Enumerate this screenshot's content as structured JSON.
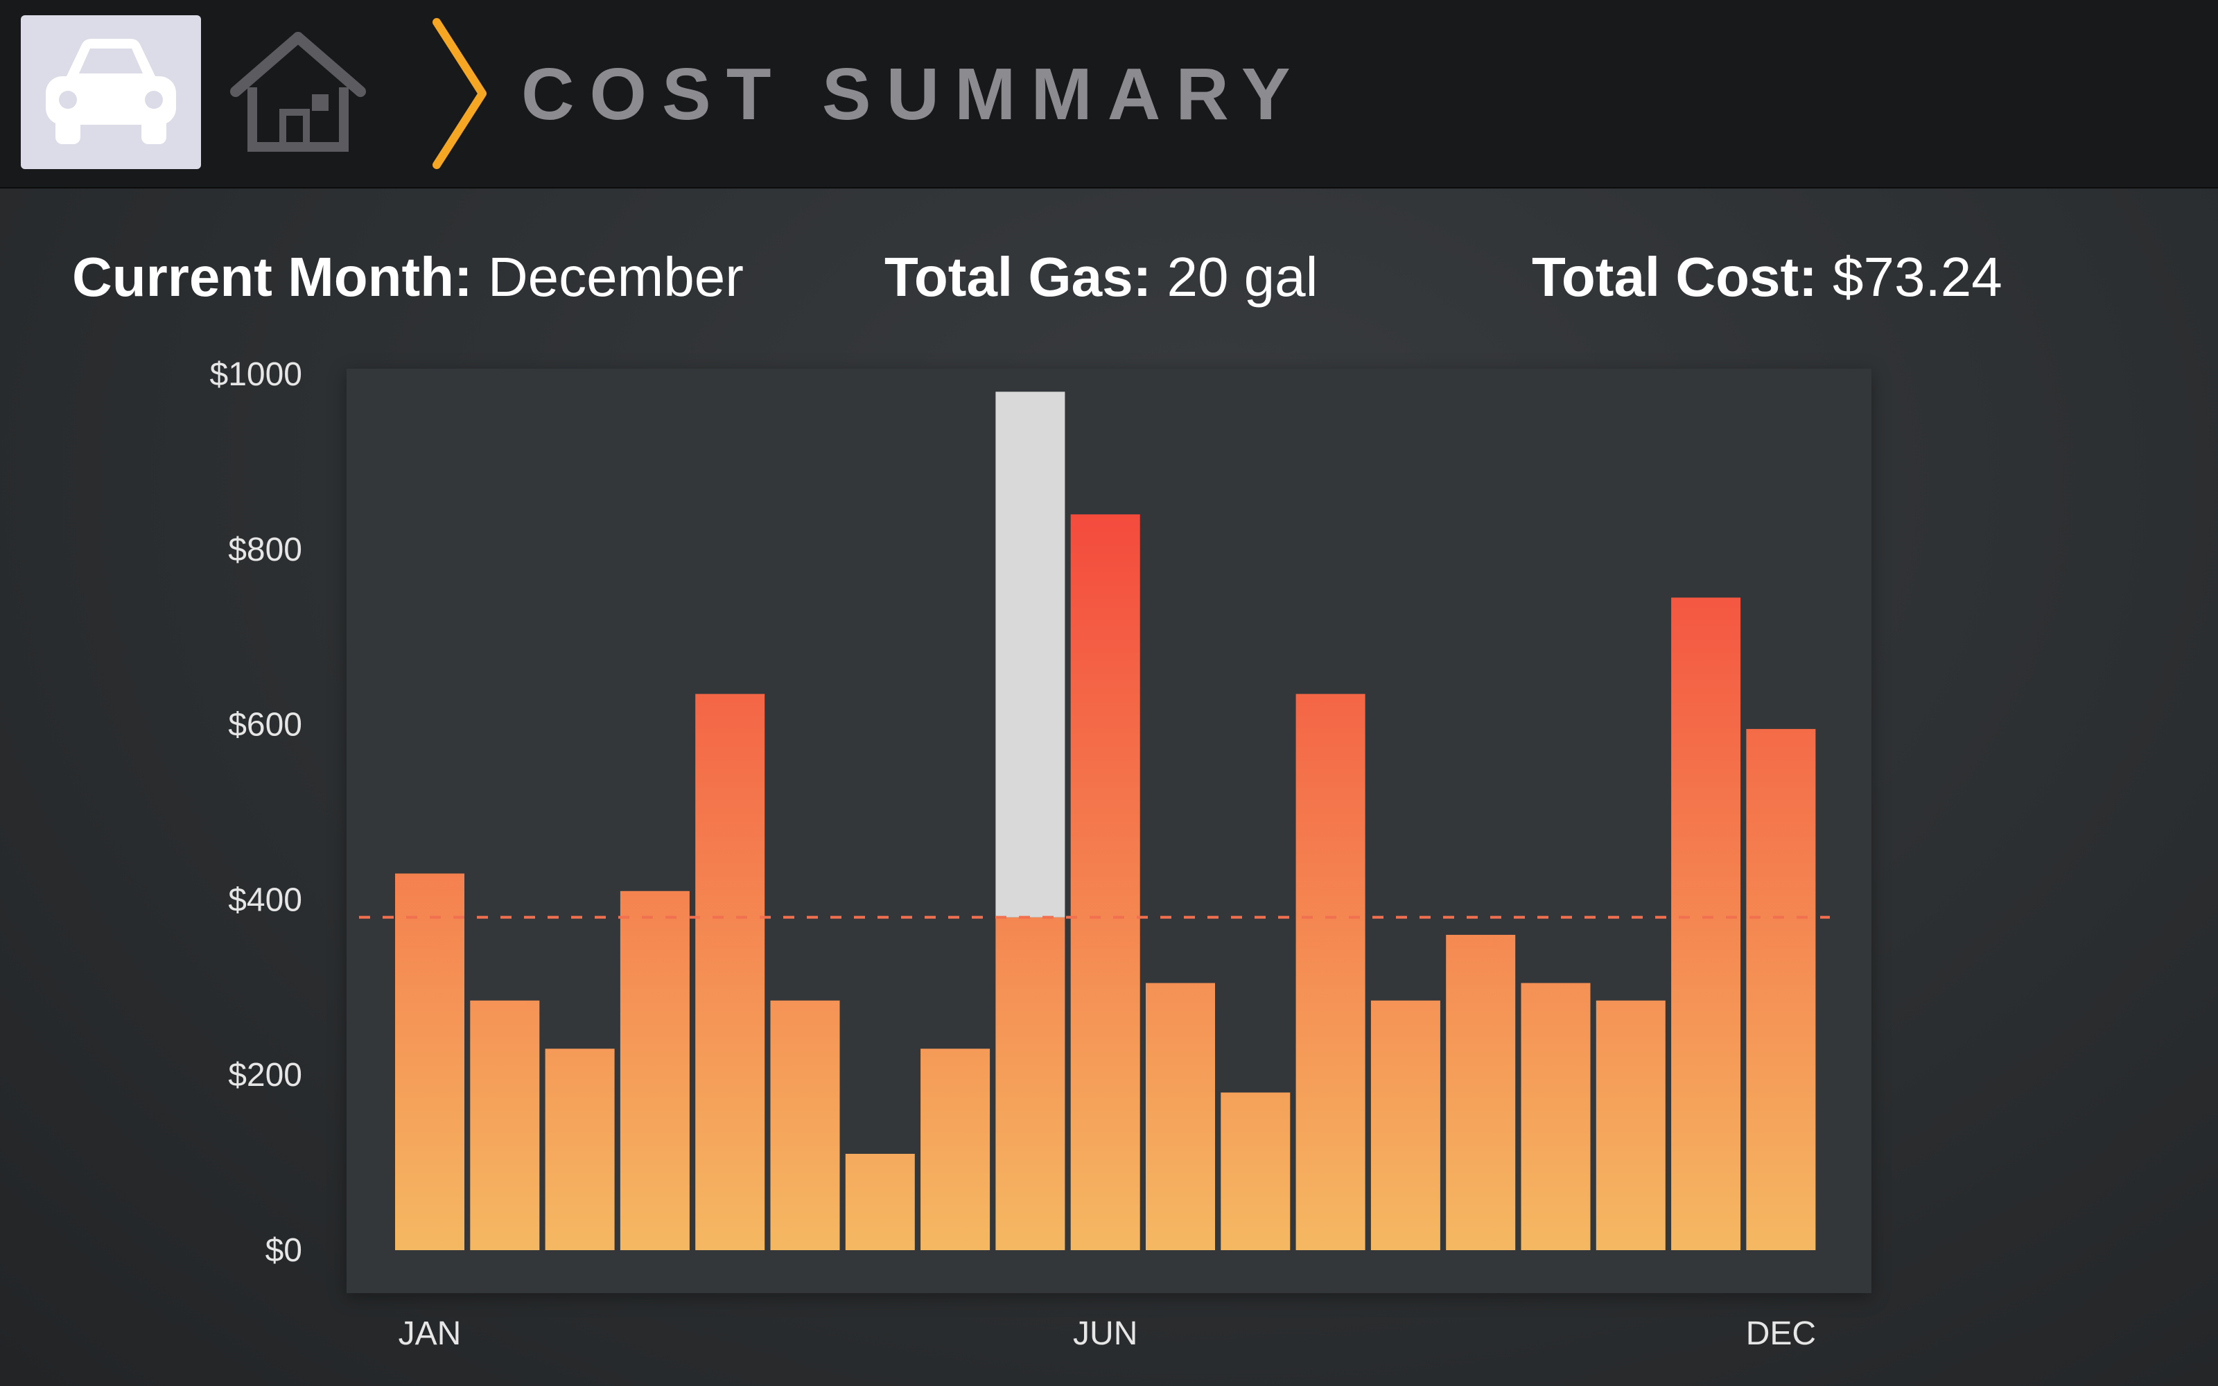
{
  "header": {
    "title": "COST SUMMARY",
    "icons": [
      "car-icon",
      "home-icon",
      "chevron-right-icon"
    ]
  },
  "stats": {
    "month_label": "Current Month:",
    "month_value": "December",
    "gas_label": "Total Gas:",
    "gas_value": "20 gal",
    "cost_label": "Total Cost:",
    "cost_value": "$73.24"
  },
  "colors": {
    "bar_top": "#f43636",
    "bar_bottom": "#f5b862",
    "highlight": "#d9d9d9",
    "average_line": "#f07050",
    "chevron": "#f5a623"
  },
  "chart_data": {
    "type": "bar",
    "title": "",
    "xlabel": "",
    "ylabel": "",
    "ylim": [
      0,
      1000
    ],
    "y_ticks": [
      {
        "value": 0,
        "label": "$0"
      },
      {
        "value": 200,
        "label": "$200"
      },
      {
        "value": 400,
        "label": "$400"
      },
      {
        "value": 600,
        "label": "$600"
      },
      {
        "value": 800,
        "label": "$800"
      },
      {
        "value": 1000,
        "label": "$1000"
      }
    ],
    "x_tick_labels": [
      {
        "index": 0,
        "label": "JAN"
      },
      {
        "index": 9,
        "label": "JUN"
      },
      {
        "index": 18,
        "label": "DEC"
      }
    ],
    "values": [
      430,
      285,
      230,
      410,
      635,
      285,
      110,
      230,
      380,
      840,
      305,
      180,
      635,
      285,
      360,
      305,
      285,
      745,
      595
    ],
    "highlight": {
      "index": 8,
      "top_value": 980
    },
    "average_line": 380,
    "grid": false
  }
}
